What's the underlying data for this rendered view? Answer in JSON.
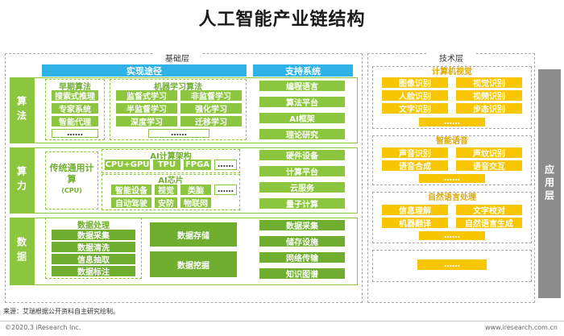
{
  "title": "人工智能产业链结构",
  "base_layer_label": "基础层",
  "tech_layer_label": "技术层",
  "app_layer_label": "应用层",
  "realize_path": "实现途径",
  "support_system": "支持系统",
  "rows": {
    "algorithm": "算法",
    "compute": "算力",
    "data": "数据"
  },
  "algorithm": {
    "early_title": "早期算法",
    "early_items": [
      "搜索式推理",
      "专家系统",
      "智能代理",
      "……"
    ],
    "ml_title": "机器学习算法",
    "ml_items": [
      "监督式学习",
      "非监督学习",
      "半监督学习",
      "强化学习",
      "深度学习",
      "迁移学习"
    ],
    "ml_more": "……",
    "support_items": [
      "编程语言",
      "算法平台",
      "AI框架",
      "理论研究"
    ]
  },
  "compute": {
    "general_label": "传统通用计算",
    "general_sub": "(CPU)",
    "arch_title": "AI计算架构",
    "arch_items": [
      "CPU+GPU",
      "TPU",
      "FPGA",
      "……"
    ],
    "chip_title": "AI芯片",
    "chip_items": [
      "智能设备",
      "视觉",
      "类脑",
      "自动驾驶",
      "安防",
      "物联网"
    ],
    "chip_more": "……",
    "support_items": [
      "硬件设备",
      "计算平台",
      "云服务",
      "量子计算"
    ]
  },
  "data": {
    "process_title": "数据处理",
    "process_items": [
      "数据采集",
      "数据清洗",
      "信息抽取",
      "数据标注"
    ],
    "storage": "数据存储",
    "mining": "数据挖掘",
    "support_items": [
      "数据采集",
      "储存设施",
      "网络传输",
      "知识图谱"
    ]
  },
  "tech": {
    "cv_title": "计算机视觉",
    "cv_items": [
      "图像识别",
      "视觉识别",
      "人脸识别",
      "视频识别",
      "文字识别",
      "步态识别"
    ],
    "speech_title": "智能语音",
    "speech_items": [
      "声音识别",
      "声纹识别",
      "语音合成",
      "语音交互"
    ],
    "nlp_title": "自然语言处理",
    "nlp_items": [
      "信息理解",
      "文字校对",
      "机器翻译",
      "自然语言生成"
    ],
    "more": "……"
  },
  "source_text": "来源：艾瑞根据公开资料自主研究绘制。",
  "footer_left": "©2020.3 iResearch Inc.",
  "footer_right": "www.iresearch.com.cn",
  "colors": {
    "green": "#8cc63f",
    "dark_green": "#6fae2e",
    "blue": "#2fb3e6",
    "yellow": "#f7c600",
    "gray": "#8c8c8c"
  }
}
